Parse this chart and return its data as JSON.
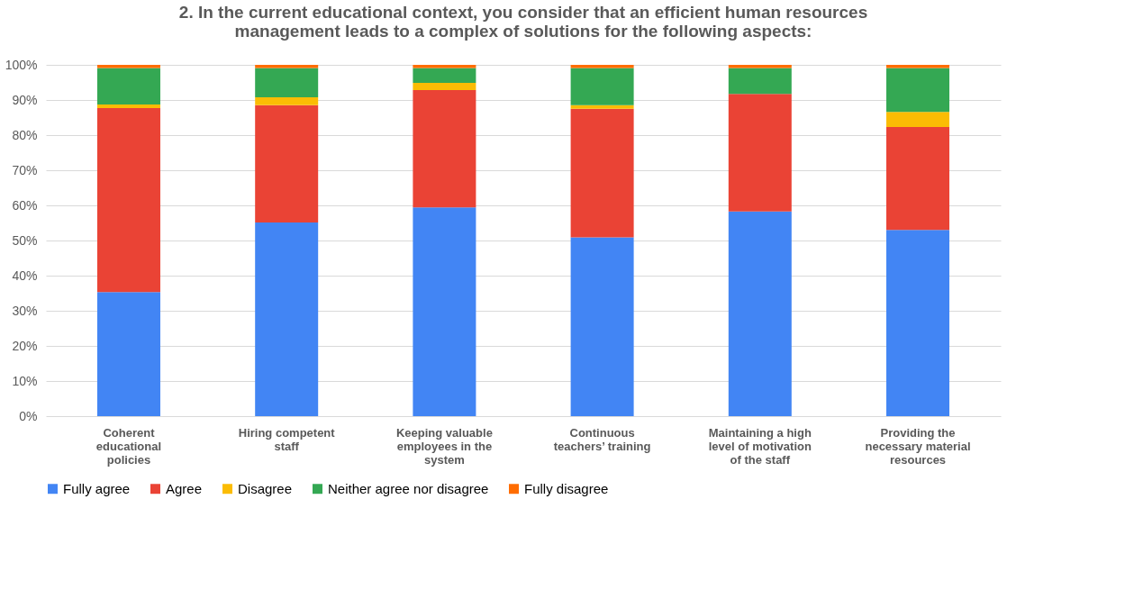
{
  "chart_data": {
    "type": "bar",
    "stacked": true,
    "title": "2. In the current educational context, you consider that an efficient human resources management leads to a complex of solutions for the following aspects:",
    "categories": [
      "Coherent educational policies",
      "Hiring competent staff",
      "Keeping valuable employees in the system",
      "Continuous teachers’ training",
      "Maintaining a high level of motivation of the staff",
      "Providing the necessary material resources"
    ],
    "series": [
      {
        "name": "Fully agree",
        "color": "#4285f4",
        "values": [
          35.3,
          55.1,
          59.4,
          50.9,
          58.3,
          53.0
        ]
      },
      {
        "name": "Agree",
        "color": "#ea4335",
        "values": [
          52.4,
          33.4,
          33.4,
          36.6,
          33.4,
          29.3
        ]
      },
      {
        "name": "Disagree",
        "color": "#fbbc04",
        "values": [
          1.0,
          2.3,
          2.1,
          1.0,
          0,
          4.3
        ]
      },
      {
        "name": "Neither agree nor disagree",
        "color": "#34a853",
        "values": [
          10.4,
          8.3,
          4.2,
          10.6,
          7.4,
          12.5
        ]
      },
      {
        "name": "Fully disagree",
        "color": "#ff6d01",
        "values": [
          0.9,
          0.9,
          0.9,
          0.9,
          0.9,
          0.9
        ]
      }
    ],
    "ylim": [
      0,
      100
    ],
    "yticks": [
      {
        "value": 0,
        "label": "0%"
      },
      {
        "value": 10,
        "label": "10%"
      },
      {
        "value": 20,
        "label": "20%"
      },
      {
        "value": 30,
        "label": "30%"
      },
      {
        "value": 40,
        "label": "40%"
      },
      {
        "value": 50,
        "label": "50%"
      },
      {
        "value": 60,
        "label": "60%"
      },
      {
        "value": 70,
        "label": "70%"
      },
      {
        "value": 80,
        "label": "80%"
      },
      {
        "value": 90,
        "label": "90%"
      },
      {
        "value": 100,
        "label": "100%"
      }
    ],
    "grid": "y",
    "legend": "bottom"
  }
}
